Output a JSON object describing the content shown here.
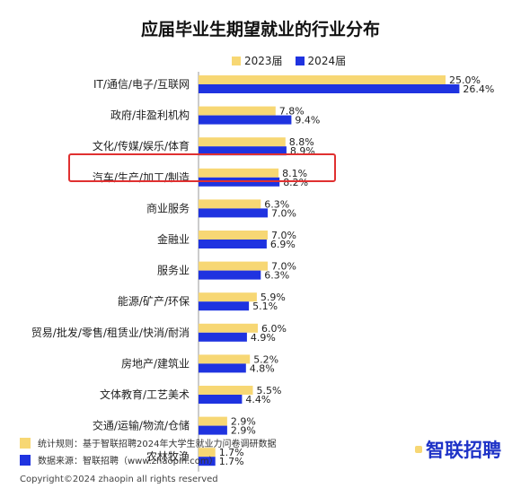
{
  "colors": {
    "y2023": "#f7d774",
    "y2024": "#1f33e0",
    "highlight": "#e03030"
  },
  "legend_2023": "2023届",
  "legend_2024": "2024届",
  "footer": {
    "rule": "统计规则：基于智联招聘2024年大学生就业力问卷调研数据",
    "source": "数据来源：智联招聘（www.zhaopin.com）",
    "copyright": "Copyright©2024 zhaopin all rights reserved",
    "brand": "智联招聘"
  },
  "chart_data": {
    "type": "bar",
    "orientation": "horizontal",
    "title": "应届毕业生期望就业的行业分布",
    "categories": [
      "IT/通信/电子/互联网",
      "政府/非盈利机构",
      "文化/传媒/娱乐/体育",
      "汽车/生产/加工/制造",
      "商业服务",
      "金融业",
      "服务业",
      "能源/矿产/环保",
      "贸易/批发/零售/租赁业/快消/耐消",
      "房地产/建筑业",
      "文体教育/工艺美术",
      "交通/运输/物流/仓储",
      "农林牧渔"
    ],
    "series": [
      {
        "name": "2023届",
        "values": [
          25.0,
          7.8,
          8.8,
          8.1,
          6.3,
          7.0,
          7.0,
          5.9,
          6.0,
          5.2,
          5.5,
          2.9,
          1.7
        ]
      },
      {
        "name": "2024届",
        "values": [
          26.4,
          9.4,
          8.9,
          8.2,
          7.0,
          6.9,
          6.3,
          5.1,
          4.9,
          4.8,
          4.4,
          2.9,
          1.7
        ]
      }
    ],
    "value_labels": [
      [
        "25.0%",
        "7.8%",
        "8.8%",
        "8.1%",
        "6.3%",
        "7.0%",
        "7.0%",
        "5.9%",
        "6.0%",
        "5.2%",
        "5.5%",
        "2.9%",
        "1.7%"
      ],
      [
        "26.4%",
        "9.4%",
        "8.9%",
        "8.2%",
        "7.0%",
        "6.9%",
        "6.3%",
        "5.1%",
        "4.9%",
        "4.8%",
        "4.4%",
        "2.9%",
        "1.7%"
      ]
    ],
    "highlighted_category_index": 3,
    "legend_position": "top-center",
    "grid": false,
    "xlim": [
      0,
      27
    ]
  }
}
